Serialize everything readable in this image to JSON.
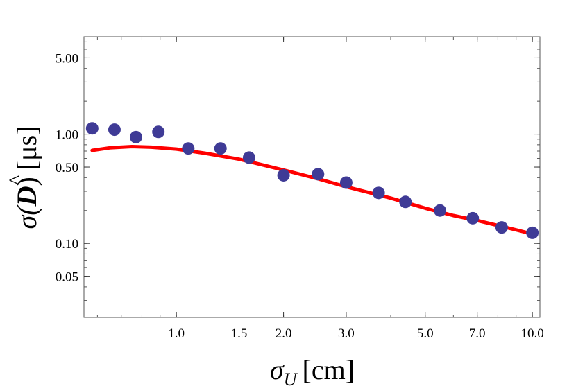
{
  "chart_data": {
    "type": "scatter",
    "xlabel_main": "σ",
    "xlabel_sub": "U",
    "xlabel_unit": "[cm]",
    "ylabel_prefix": "σ(",
    "ylabel_var": "D",
    "ylabel_suffix": ") [μs]",
    "xscale": "log",
    "yscale": "log",
    "xlim": [
      0.55,
      10.5
    ],
    "ylim": [
      0.021,
      7.8
    ],
    "grid": false,
    "x_ticks": [
      {
        "value": 1.0,
        "label": "1.0"
      },
      {
        "value": 1.5,
        "label": "1.5"
      },
      {
        "value": 2.0,
        "label": "2.0"
      },
      {
        "value": 3.0,
        "label": "3.0"
      },
      {
        "value": 5.0,
        "label": "5.0"
      },
      {
        "value": 7.0,
        "label": "7.0"
      },
      {
        "value": 10.0,
        "label": "10.0"
      }
    ],
    "y_ticks": [
      {
        "value": 5.0,
        "label": "5.00"
      },
      {
        "value": 1.0,
        "label": "1.00"
      },
      {
        "value": 0.5,
        "label": "0.50"
      },
      {
        "value": 0.1,
        "label": "0.10"
      },
      {
        "value": 0.05,
        "label": "0.05"
      }
    ],
    "series": [
      {
        "kind": "points",
        "color": "#3f3b96",
        "x": [
          0.58,
          0.67,
          0.77,
          0.89,
          1.08,
          1.33,
          1.6,
          2.0,
          2.5,
          3.0,
          3.7,
          4.4,
          5.5,
          6.8,
          8.2,
          10.0
        ],
        "y": [
          1.13,
          1.1,
          0.94,
          1.05,
          0.74,
          0.74,
          0.61,
          0.42,
          0.43,
          0.36,
          0.29,
          0.24,
          0.2,
          0.17,
          0.14,
          0.125
        ]
      },
      {
        "kind": "line",
        "color": "#ff0000",
        "x": [
          0.58,
          0.65,
          0.75,
          0.85,
          1.0,
          1.2,
          1.5,
          2.0,
          2.5,
          3.0,
          4.0,
          5.0,
          6.0,
          7.0,
          8.0,
          9.0,
          10.0
        ],
        "y": [
          0.71,
          0.75,
          0.77,
          0.76,
          0.73,
          0.67,
          0.59,
          0.47,
          0.39,
          0.33,
          0.26,
          0.21,
          0.18,
          0.162,
          0.146,
          0.133,
          0.122
        ]
      }
    ]
  }
}
